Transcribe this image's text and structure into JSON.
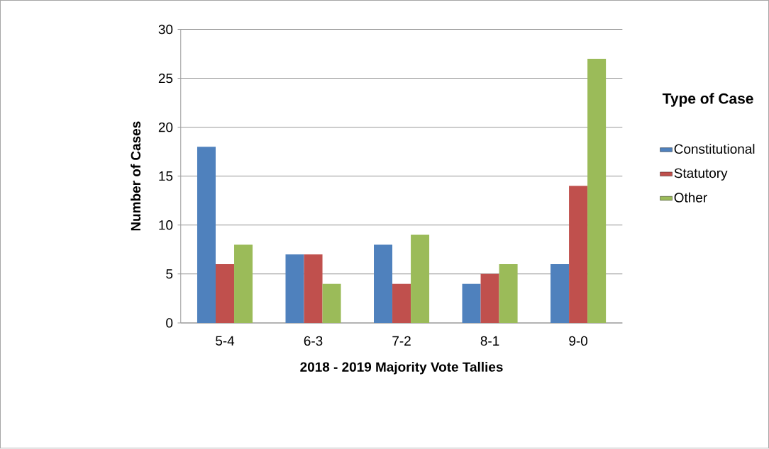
{
  "chart_data": {
    "type": "bar",
    "xlabel": "2018 - 2019  Majority Vote Tallies",
    "ylabel": "Number of Cases",
    "legend_title": "Type of Case",
    "categories": [
      "5-4",
      "6-3",
      "7-2",
      "8-1",
      "9-0"
    ],
    "series": [
      {
        "name": "Constitutional",
        "color": "#4f81bd",
        "values": [
          18,
          7,
          8,
          4,
          6
        ]
      },
      {
        "name": "Statutory",
        "color": "#c0504d",
        "values": [
          6,
          7,
          4,
          5,
          14
        ]
      },
      {
        "name": "Other",
        "color": "#9bbb59",
        "values": [
          8,
          4,
          9,
          6,
          27
        ]
      }
    ],
    "ylim": [
      0,
      30
    ],
    "yticks": [
      0,
      5,
      10,
      15,
      20,
      25,
      30
    ],
    "grid": "y",
    "legend": "right"
  }
}
